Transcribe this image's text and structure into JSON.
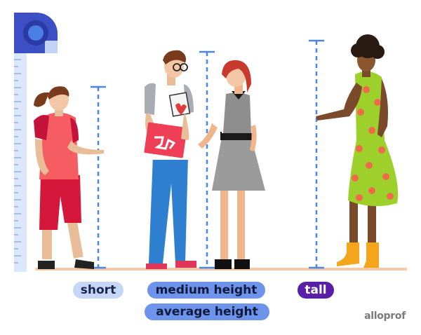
{
  "labels": {
    "short": "short",
    "medium": "medium height",
    "average": "average height",
    "tall": "tall"
  },
  "brand": "alloprof",
  "colors": {
    "measure_line": "#4a86e8",
    "ground": "#f6c9a4",
    "ruler": "#dbe7fb",
    "ruler_cap": "#3d4fc4",
    "short_pill": "#c5d6f6",
    "medium_pill": "#6d93ea",
    "tall_pill": "#5a1fa8"
  },
  "figures": [
    "girl-short",
    "boy-medium",
    "woman-medium",
    "woman-tall"
  ]
}
